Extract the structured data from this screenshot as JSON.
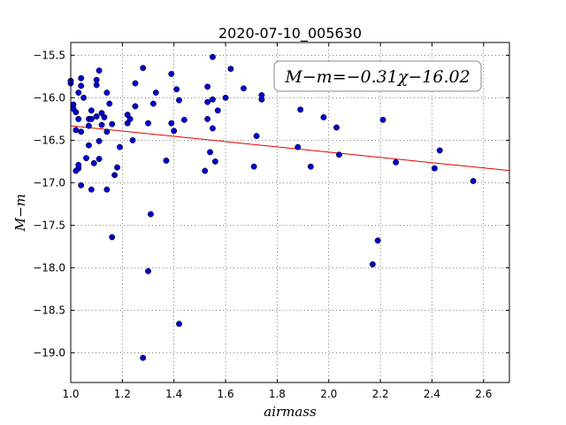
{
  "chart_data": {
    "type": "scatter",
    "title": "2020-07-10_005630",
    "xlabel": "airmass",
    "ylabel": "M−m",
    "xlim": [
      1.0,
      2.7
    ],
    "ylim": [
      -19.35,
      -15.35
    ],
    "y_inverted": true,
    "x_ticks": [
      1.0,
      1.2,
      1.4,
      1.6,
      1.8,
      2.0,
      2.2,
      2.4,
      2.6
    ],
    "x_tick_labels": [
      "1.0",
      "1.2",
      "1.4",
      "1.6",
      "1.8",
      "2.0",
      "2.2",
      "2.4",
      "2.6"
    ],
    "y_ticks": [
      -15.5,
      -16.0,
      -16.5,
      -17.0,
      -17.5,
      -18.0,
      -18.5,
      -19.0
    ],
    "y_tick_labels": [
      "−15.5",
      "−16.0",
      "−16.5",
      "−17.0",
      "−17.5",
      "−18.0",
      "−18.5",
      "−19.0"
    ],
    "grid": true,
    "annotation": "M−m=−0.31χ−16.02",
    "fit_line": {
      "slope": -0.31,
      "intercept": -16.02,
      "color": "#e00000"
    },
    "marker_color": "#0000cc",
    "series": [
      {
        "x": [
          1.0,
          1.0,
          1.01,
          1.01,
          1.02,
          1.02,
          1.02,
          1.03,
          1.03,
          1.03,
          1.03,
          1.04,
          1.04,
          1.04,
          1.04,
          1.05,
          1.06,
          1.07,
          1.07,
          1.07,
          1.08,
          1.08,
          1.08,
          1.09,
          1.1,
          1.1,
          1.1,
          1.11,
          1.11,
          1.11,
          1.12,
          1.12,
          1.13,
          1.14,
          1.14,
          1.14,
          1.15,
          1.16,
          1.16,
          1.17,
          1.18,
          1.19,
          1.22,
          1.22,
          1.23,
          1.24,
          1.25,
          1.25,
          1.28,
          1.28,
          1.3,
          1.3,
          1.31,
          1.32,
          1.33,
          1.37,
          1.39,
          1.39,
          1.4,
          1.41,
          1.42,
          1.42,
          1.44,
          1.52,
          1.53,
          1.53,
          1.53,
          1.54,
          1.55,
          1.55,
          1.55,
          1.56,
          1.57,
          1.6,
          1.62,
          1.67,
          1.71,
          1.72,
          1.74,
          1.74,
          1.88,
          1.89,
          1.93,
          1.98,
          2.03,
          2.04,
          2.17,
          2.19,
          2.21,
          2.26,
          2.41,
          2.43,
          2.56
        ],
        "y": [
          -15.8,
          -15.83,
          -16.08,
          -16.13,
          -16.86,
          -16.17,
          -16.38,
          -15.94,
          -16.25,
          -16.83,
          -16.79,
          -16.4,
          -15.77,
          -15.86,
          -17.03,
          -16.0,
          -16.71,
          -16.33,
          -16.25,
          -16.56,
          -16.15,
          -16.25,
          -17.08,
          -16.77,
          -15.79,
          -15.85,
          -16.22,
          -15.68,
          -16.51,
          -16.72,
          -16.18,
          -16.32,
          -16.23,
          -17.08,
          -15.94,
          -16.4,
          -16.07,
          -17.64,
          -16.31,
          -16.91,
          -16.82,
          -16.58,
          -16.3,
          -16.2,
          -16.25,
          -16.5,
          -16.1,
          -15.83,
          -15.65,
          -19.06,
          -18.04,
          -16.3,
          -17.37,
          -16.07,
          -15.94,
          -16.74,
          -15.72,
          -16.3,
          -16.39,
          -15.9,
          -16.03,
          -18.66,
          -16.26,
          -16.86,
          -16.25,
          -16.05,
          -15.87,
          -16.64,
          -15.52,
          -16.02,
          -16.36,
          -16.75,
          -16.15,
          -16.0,
          -15.66,
          -15.89,
          -16.81,
          -16.45,
          -16.02,
          -15.97,
          -16.58,
          -16.14,
          -16.81,
          -16.23,
          -16.35,
          -16.67,
          -17.96,
          -17.68,
          -16.26,
          -16.76,
          -16.83,
          -16.62,
          -16.98
        ]
      }
    ]
  }
}
